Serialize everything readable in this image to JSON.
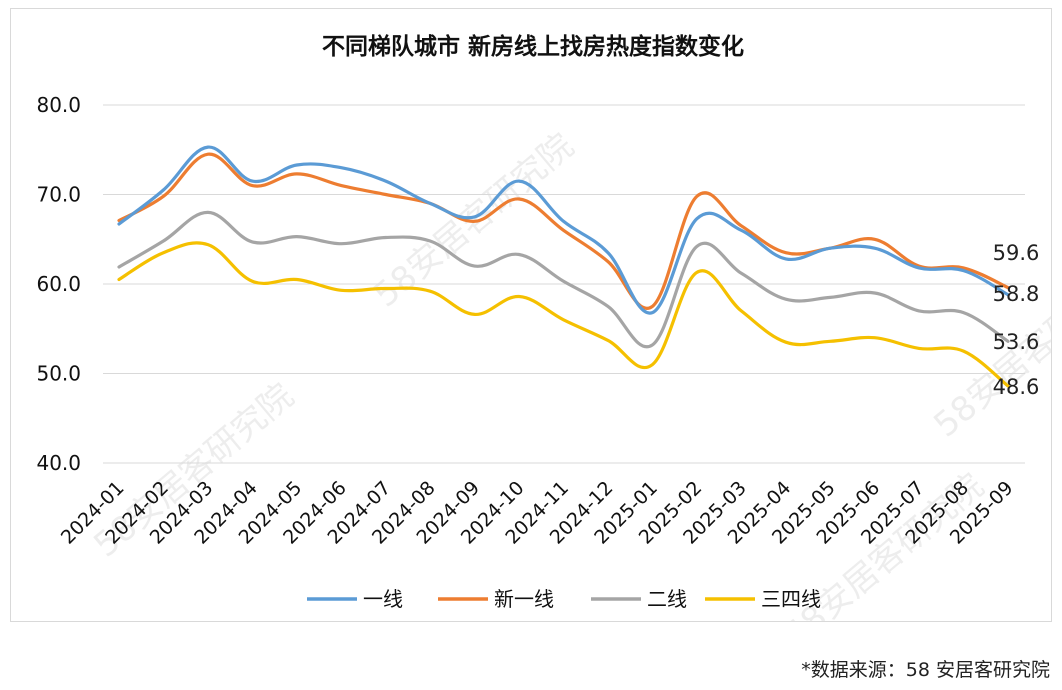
{
  "chart_data": {
    "type": "line",
    "title": "不同梯队城市 新房线上找房热度指数变化",
    "categories": [
      "2024-01",
      "2024-02",
      "2024-03",
      "2024-04",
      "2024-05",
      "2024-06",
      "2024-07",
      "2024-08",
      "2024-09",
      "2024-10",
      "2024-11",
      "2024-12",
      "2025-01",
      "2025-02",
      "2025-03",
      "2025-04",
      "2025-05",
      "2025-06",
      "2025-07",
      "2025-08",
      "2025-09"
    ],
    "ylim": [
      40,
      80
    ],
    "yticks": [
      "40.0",
      "50.0",
      "60.0",
      "70.0",
      "80.0"
    ],
    "grid": true,
    "legend_position": "bottom",
    "series": [
      {
        "name": "一线",
        "color": "#5b9bd5",
        "values": [
          66.7,
          70.5,
          75.3,
          71.5,
          73.3,
          73.0,
          71.5,
          69.0,
          67.5,
          71.5,
          67.0,
          63.5,
          56.8,
          67.3,
          66.0,
          62.8,
          64.0,
          64.0,
          61.8,
          61.5,
          58.8
        ],
        "end_label": "58.8"
      },
      {
        "name": "新一线",
        "color": "#ed7d31",
        "values": [
          67.1,
          69.8,
          74.5,
          71.0,
          72.3,
          71.0,
          70.0,
          69.0,
          67.0,
          69.5,
          66.0,
          62.5,
          57.5,
          69.8,
          66.5,
          63.5,
          64.0,
          65.0,
          62.0,
          61.8,
          59.6
        ],
        "end_label": "59.6"
      },
      {
        "name": "二线",
        "color": "#a5a5a5",
        "values": [
          61.9,
          64.8,
          68.0,
          64.7,
          65.3,
          64.5,
          65.2,
          64.8,
          62.0,
          63.3,
          60.3,
          57.5,
          53.2,
          64.2,
          61.2,
          58.3,
          58.5,
          59.0,
          57.0,
          56.8,
          53.6
        ],
        "end_label": "53.6"
      },
      {
        "name": "三四线",
        "color": "#f5c000",
        "values": [
          60.5,
          63.5,
          64.4,
          60.3,
          60.5,
          59.3,
          59.5,
          59.2,
          56.6,
          58.6,
          56.0,
          53.7,
          51.0,
          61.3,
          57.0,
          53.5,
          53.6,
          54.0,
          52.8,
          52.5,
          48.6
        ],
        "end_label": "48.6"
      }
    ]
  },
  "watermark": "58安居客研究院",
  "source_note": "*数据来源：58 安居客研究院"
}
